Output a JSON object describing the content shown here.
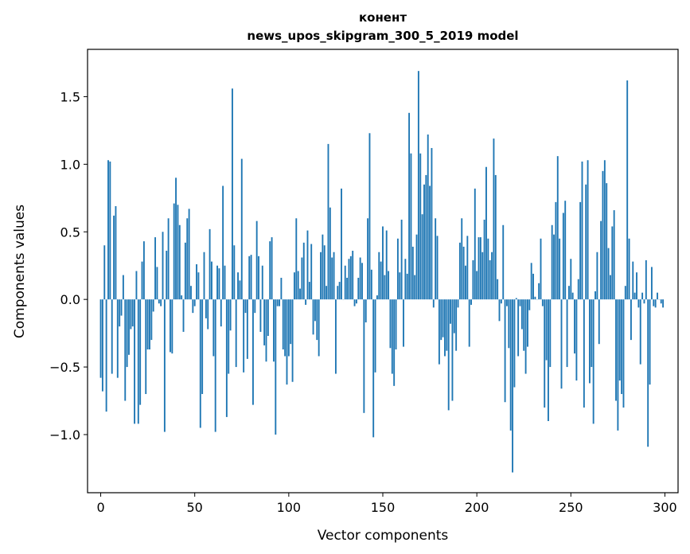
{
  "chart_data": {
    "type": "bar",
    "title": "конент",
    "subtitle": "news_upos_skipgram_300_5_2019 model",
    "xlabel": "Vector components",
    "ylabel": "Components values",
    "xlim": [
      -7,
      307
    ],
    "ylim": [
      -1.43,
      1.85
    ],
    "xticks": [
      0,
      50,
      100,
      150,
      200,
      250,
      300
    ],
    "yticks": [
      -1.0,
      -0.5,
      0.0,
      0.5,
      1.0,
      1.5
    ],
    "ytick_labels": [
      "−1.0",
      "−0.5",
      "0.0",
      "0.5",
      "1.0",
      "1.5"
    ],
    "color": "#1f77b4",
    "x": "0..299 (component index)",
    "values": [
      -0.58,
      -0.68,
      0.4,
      -0.83,
      1.03,
      1.02,
      -0.55,
      0.62,
      0.69,
      -0.58,
      -0.2,
      -0.12,
      0.18,
      -0.75,
      -0.5,
      -0.41,
      -0.22,
      -0.2,
      -0.92,
      0.21,
      -0.92,
      -0.78,
      0.28,
      0.43,
      -0.7,
      -0.37,
      -0.37,
      -0.3,
      -0.09,
      0.46,
      0.24,
      -0.03,
      -0.05,
      0.5,
      -0.98,
      0.36,
      0.6,
      -0.39,
      -0.4,
      0.71,
      0.9,
      0.7,
      0.55,
      0.03,
      -0.24,
      0.42,
      0.6,
      0.67,
      0.1,
      -0.1,
      -0.05,
      0.26,
      0.2,
      -0.95,
      -0.7,
      0.35,
      -0.14,
      -0.22,
      0.52,
      0.28,
      -0.42,
      -0.98,
      0.25,
      0.23,
      -0.2,
      0.84,
      0.25,
      -0.87,
      -0.55,
      -0.23,
      1.56,
      0.4,
      -0.5,
      0.2,
      0.14,
      1.04,
      -0.54,
      -0.1,
      -0.44,
      0.32,
      0.33,
      -0.78,
      -0.1,
      0.58,
      0.32,
      -0.24,
      0.25,
      -0.34,
      -0.46,
      -0.27,
      0.43,
      0.46,
      -0.46,
      -1.0,
      -0.05,
      -0.05,
      0.16,
      -0.37,
      -0.42,
      -0.63,
      -0.42,
      -0.33,
      -0.61,
      0.2,
      0.6,
      0.21,
      0.08,
      0.31,
      0.42,
      -0.04,
      0.51,
      0.13,
      0.41,
      -0.26,
      -0.16,
      -0.3,
      -0.42,
      0.35,
      0.48,
      0.4,
      0.1,
      1.15,
      0.68,
      0.31,
      0.35,
      -0.55,
      0.1,
      0.13,
      0.82,
      0.0,
      0.25,
      0.16,
      0.3,
      0.32,
      0.36,
      -0.05,
      -0.03,
      0.16,
      0.31,
      0.27,
      -0.84,
      -0.17,
      0.6,
      1.23,
      0.22,
      -1.02,
      -0.54,
      0.03,
      0.35,
      0.28,
      0.54,
      0.18,
      0.51,
      0.21,
      -0.36,
      -0.55,
      -0.64,
      -0.37,
      0.45,
      0.2,
      0.59,
      -0.35,
      0.3,
      0.19,
      1.38,
      1.08,
      0.39,
      0.18,
      0.48,
      1.69,
      1.08,
      0.63,
      0.85,
      0.92,
      1.22,
      0.84,
      1.12,
      -0.06,
      0.6,
      0.47,
      -0.48,
      -0.3,
      -0.28,
      -0.42,
      -0.38,
      -0.82,
      -0.18,
      -0.75,
      -0.25,
      -0.38,
      -0.06,
      0.42,
      0.6,
      0.39,
      0.25,
      0.47,
      -0.35,
      -0.04,
      0.29,
      0.82,
      0.21,
      0.46,
      0.46,
      0.35,
      0.59,
      0.98,
      0.45,
      0.29,
      0.35,
      1.19,
      0.92,
      0.15,
      -0.16,
      -0.03,
      0.55,
      -0.76,
      -0.05,
      -0.36,
      -0.97,
      -1.28,
      -0.65,
      0.01,
      -0.42,
      -0.05,
      -0.22,
      -0.38,
      -0.55,
      -0.35,
      -0.08,
      0.27,
      0.19,
      0.02,
      0.0,
      0.12,
      0.45,
      -0.05,
      -0.8,
      -0.45,
      -0.9,
      -0.5,
      0.55,
      0.48,
      0.72,
      1.06,
      0.45,
      -0.66,
      0.64,
      0.73,
      -0.5,
      0.1,
      0.3,
      0.05,
      -0.4,
      -0.6,
      0.15,
      0.72,
      1.02,
      -0.8,
      0.85,
      1.03,
      -0.62,
      -0.5,
      -0.92,
      0.06,
      0.35,
      -0.33,
      0.58,
      0.95,
      1.03,
      0.86,
      0.38,
      0.18,
      0.54,
      0.66,
      -0.75,
      -0.97,
      -0.6,
      -0.7,
      -0.8,
      0.1,
      1.62,
      0.45,
      -0.3,
      0.28,
      0.05,
      0.2,
      -0.06,
      -0.48,
      0.05,
      -0.03,
      0.29,
      -1.09,
      -0.63,
      0.24,
      -0.05,
      -0.06,
      0.05,
      0.0,
      -0.03,
      -0.06
    ]
  }
}
